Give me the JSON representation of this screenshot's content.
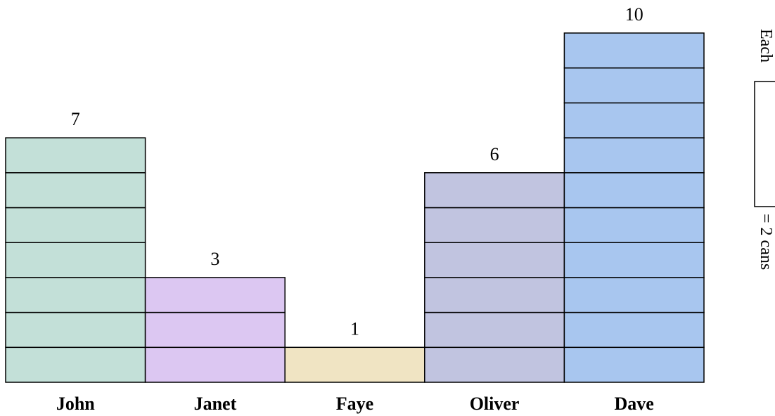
{
  "chart_data": {
    "type": "bar",
    "style": "stacked-unit-pictograph",
    "categories": [
      "John",
      "Janet",
      "Faye",
      "Oliver",
      "Dave"
    ],
    "values": [
      7,
      3,
      1,
      6,
      10
    ],
    "colors": [
      "#c3e0d8",
      "#dcc7f2",
      "#f0e4c3",
      "#c1c4e0",
      "#a8c6ef"
    ],
    "outline_color": "#000000",
    "ylim": [
      0,
      10
    ],
    "grid": false,
    "legend": {
      "position": "right",
      "prefix": "Each",
      "suffix": "= 2 cans",
      "orientation": "rotated-vertical"
    }
  }
}
